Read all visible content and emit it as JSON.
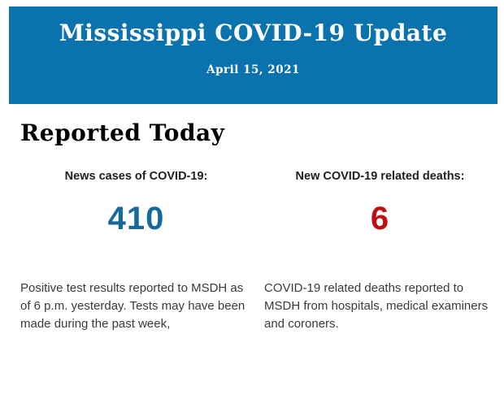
{
  "banner": {
    "title": "Mississippi COVID-19 Update",
    "date": "April 15, 2021",
    "bg_color": "#0a72ad",
    "text_color": "#ffffff"
  },
  "section": {
    "heading": "Reported Today"
  },
  "stats": [
    {
      "label": "News cases of COVID-19:",
      "value": "410",
      "value_color": "#17689d",
      "description": "Positive test results reported to MSDH as of 6 p.m. yesterday. Tests may have been made during the past week,"
    },
    {
      "label": "New COVID-19 related deaths:",
      "value": "6",
      "value_color": "#c00d12",
      "description": "COVID-19 related deaths reported to MSDH from hospitals, medical examiners and coroners."
    }
  ]
}
